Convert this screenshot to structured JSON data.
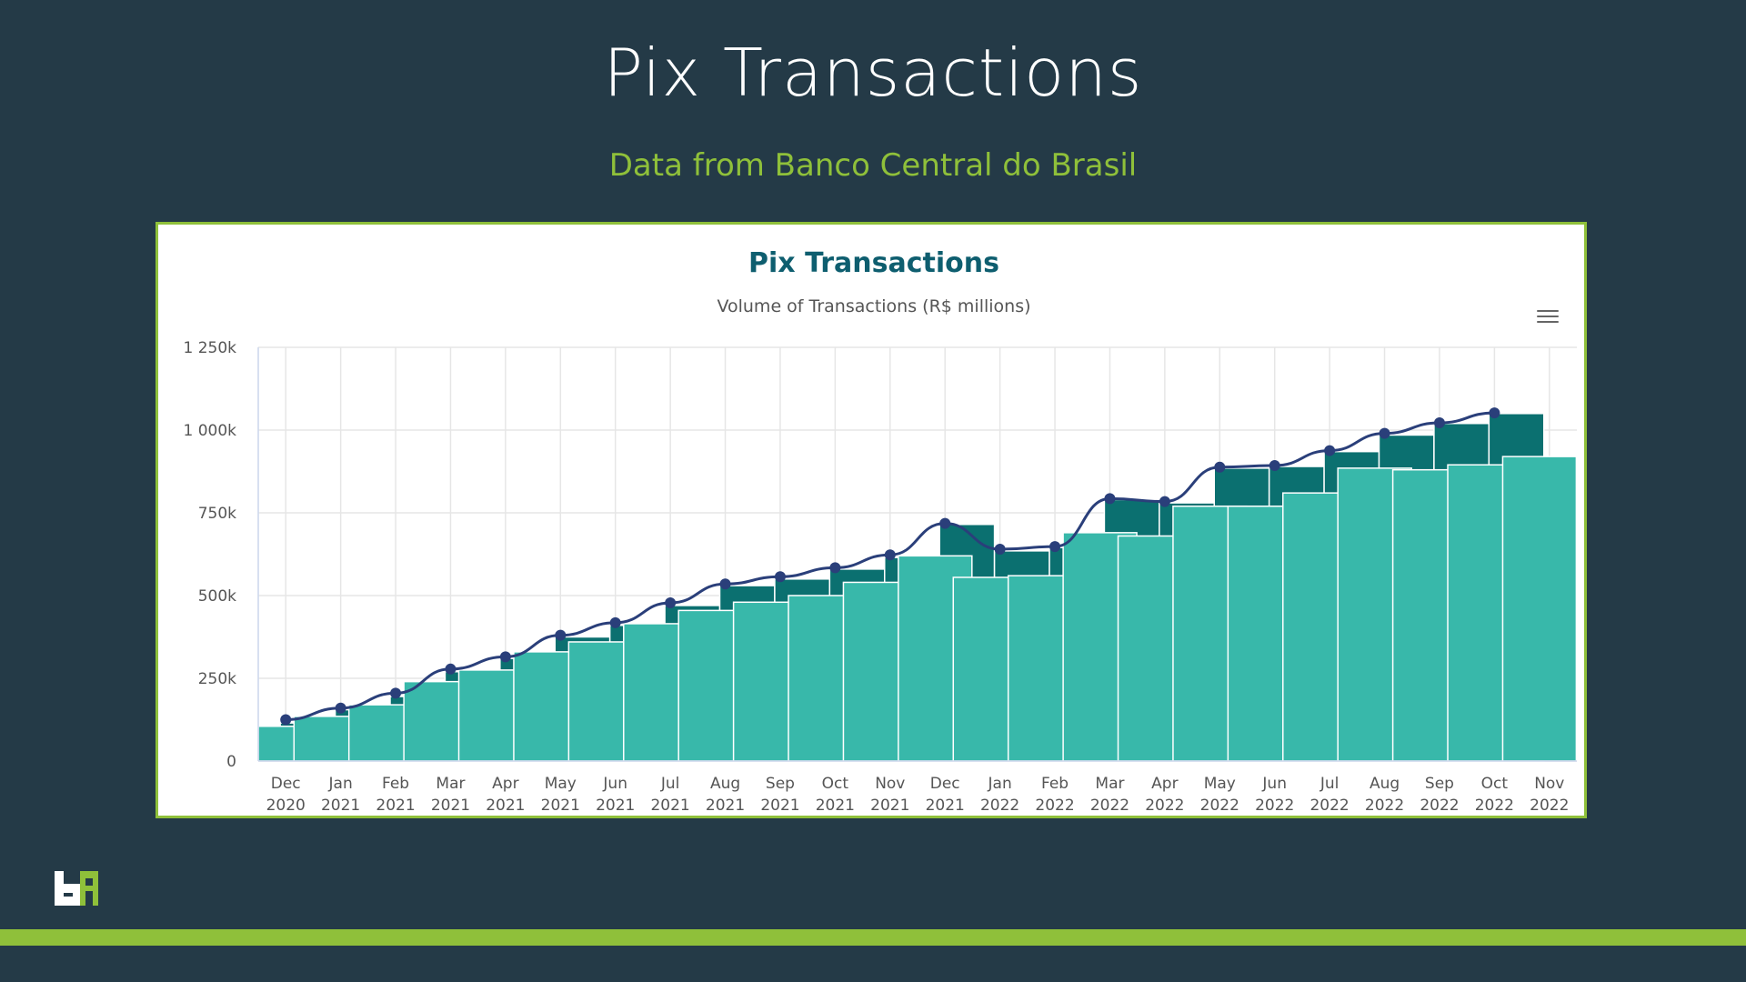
{
  "slide": {
    "title": "Pix Transactions",
    "subtitle": "Data from Banco Central do Brasil"
  },
  "chart_data": {
    "type": "bar",
    "title": "Pix Transactions",
    "subtitle": "Volume of Transactions (R$ millions)",
    "categories": [
      "Dec 2020",
      "Jan 2021",
      "Feb 2021",
      "Mar 2021",
      "Apr 2021",
      "May 2021",
      "Jun 2021",
      "Jul 2021",
      "Aug 2021",
      "Sep 2021",
      "Oct 2021",
      "Nov 2021",
      "Dec 2021",
      "Jan 2022",
      "Feb 2022",
      "Mar 2022",
      "Apr 2022",
      "May 2022",
      "Jun 2022",
      "Jul 2022",
      "Aug 2022",
      "Sep 2022",
      "Oct 2022",
      "Nov 2022"
    ],
    "x_tick_labels": [
      [
        "Dec",
        "2020"
      ],
      [
        "Jan",
        "2021"
      ],
      [
        "Feb",
        "2021"
      ],
      [
        "Mar",
        "2021"
      ],
      [
        "Apr",
        "2021"
      ],
      [
        "May",
        "2021"
      ],
      [
        "Jun",
        "2021"
      ],
      [
        "Jul",
        "2021"
      ],
      [
        "Aug",
        "2021"
      ],
      [
        "Sep",
        "2021"
      ],
      [
        "Oct",
        "2021"
      ],
      [
        "Nov",
        "2021"
      ],
      [
        "Dec",
        "2021"
      ],
      [
        "Jan",
        "2022"
      ],
      [
        "Feb",
        "2022"
      ],
      [
        "Mar",
        "2022"
      ],
      [
        "Apr",
        "2022"
      ],
      [
        "May",
        "2022"
      ],
      [
        "Jun",
        "2022"
      ],
      [
        "Jul",
        "2022"
      ],
      [
        "Aug",
        "2022"
      ],
      [
        "Sep",
        "2022"
      ],
      [
        "Oct",
        "2022"
      ],
      [
        "Nov",
        "2022"
      ]
    ],
    "y_tick_labels": [
      "0",
      "250k",
      "500k",
      "750k",
      "1 000k",
      "1 250k"
    ],
    "ylim": [
      0,
      1250000
    ],
    "grid": true,
    "series": [
      {
        "color": "#0b7070",
        "values": [
          115000,
          155000,
          195000,
          270000,
          310000,
          375000,
          410000,
          470000,
          530000,
          550000,
          580000,
          615000,
          715000,
          635000,
          645000,
          790000,
          780000,
          885000,
          890000,
          935000,
          985000,
          1020000,
          1050000,
          null
        ]
      },
      {
        "color": "#38b8aa",
        "values": [
          105000,
          135000,
          170000,
          240000,
          275000,
          330000,
          360000,
          415000,
          455000,
          480000,
          500000,
          540000,
          620000,
          555000,
          560000,
          690000,
          680000,
          770000,
          770000,
          810000,
          885000,
          880000,
          895000,
          920000
        ]
      },
      {
        "type": "line",
        "color": "#2a3f7a",
        "values": [
          125000,
          160000,
          205000,
          278000,
          315000,
          380000,
          418000,
          478000,
          535000,
          557000,
          584000,
          623000,
          718000,
          640000,
          648000,
          793000,
          784000,
          888000,
          893000,
          938000,
          990000,
          1022000,
          1052000,
          null
        ]
      }
    ]
  },
  "icons": {
    "menu": "hamburger-menu-icon",
    "logo": "brand-logo-icon"
  },
  "colors": {
    "background": "#243a47",
    "accent": "#8fc03a",
    "chart_title": "#0e5e6f"
  }
}
